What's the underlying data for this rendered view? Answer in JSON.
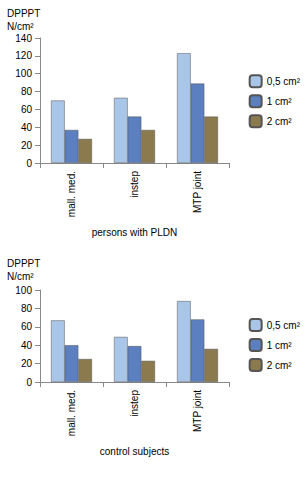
{
  "chart_data": [
    {
      "type": "bar",
      "y_label": "DPPPT N/cm²",
      "x_label": "persons with PLDN",
      "categories": [
        "mall. med.",
        "instep",
        "MTP joint"
      ],
      "series": [
        {
          "name": "0,5 cm²",
          "color": "#a9c6e8",
          "values": [
            70,
            73,
            123
          ]
        },
        {
          "name": "1 cm²",
          "color": "#5b7fbf",
          "values": [
            37,
            52,
            89
          ]
        },
        {
          "name": "2 cm²",
          "color": "#8c7a4f",
          "values": [
            27,
            37,
            52
          ]
        }
      ],
      "ylim": [
        0,
        140
      ],
      "yticks": [
        0,
        20,
        40,
        60,
        80,
        100,
        120,
        140
      ],
      "grid": false,
      "legend": "right"
    },
    {
      "type": "bar",
      "y_label": "DPPPT N/cm²",
      "x_label": "control subjects",
      "categories": [
        "mall. med.",
        "instep",
        "MTP joint"
      ],
      "series": [
        {
          "name": "0,5 cm²",
          "color": "#a9c6e8",
          "values": [
            67,
            49,
            88
          ]
        },
        {
          "name": "1 cm²",
          "color": "#5b7fbf",
          "values": [
            40,
            39,
            68
          ]
        },
        {
          "name": "2 cm²",
          "color": "#8c7a4f",
          "values": [
            25,
            23,
            36
          ]
        }
      ],
      "ylim": [
        0,
        100
      ],
      "yticks": [
        0,
        20,
        40,
        60,
        80,
        100
      ],
      "grid": false,
      "legend": "right"
    }
  ]
}
